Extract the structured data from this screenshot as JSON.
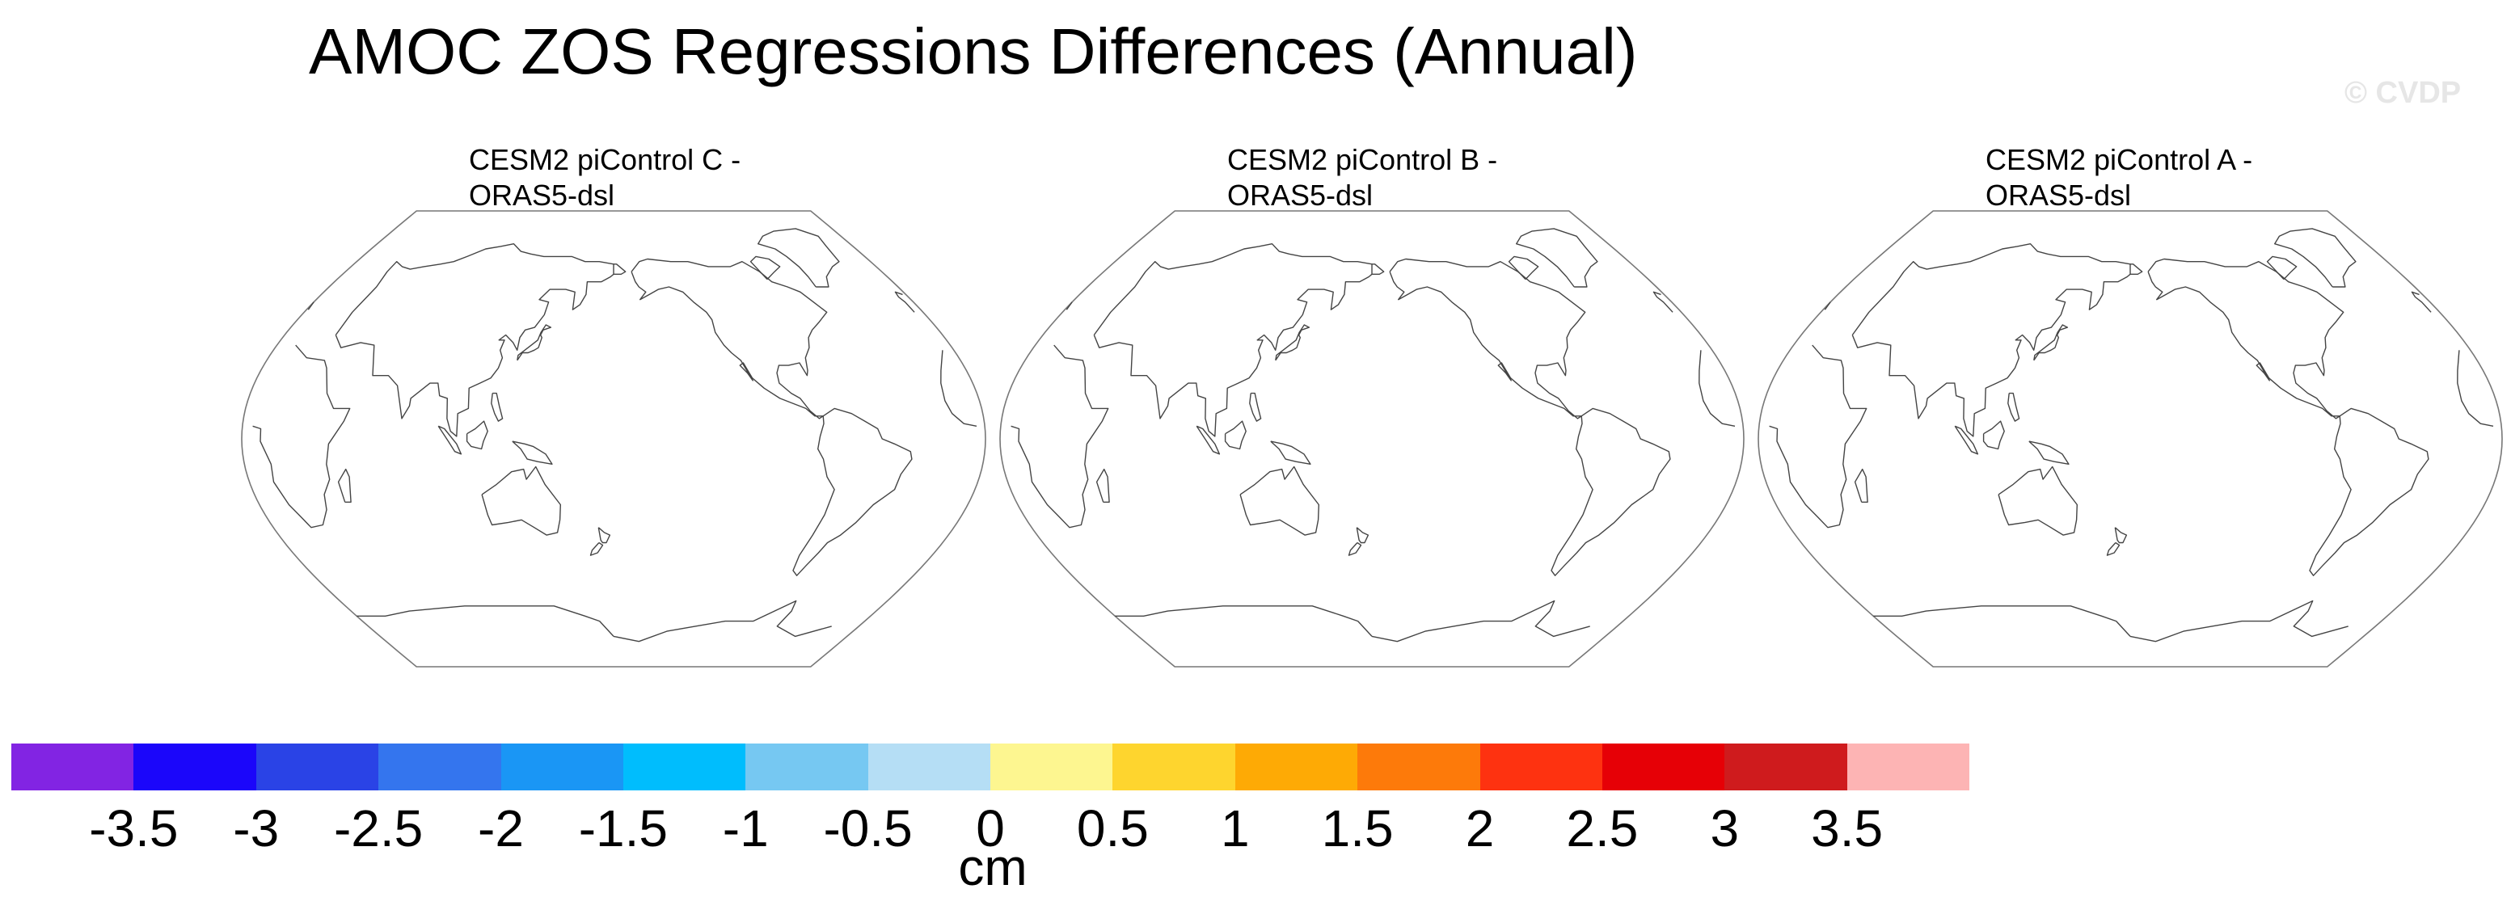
{
  "title": "AMOC ZOS Regressions Differences (Annual)",
  "watermark": "© CVDP",
  "panels": [
    {
      "line1": "CESM2 piControl C -",
      "line2": "ORAS5-dsl"
    },
    {
      "line1": "CESM2 piControl B -",
      "line2": "ORAS5-dsl"
    },
    {
      "line1": "CESM2 piControl A -",
      "line2": "ORAS5-dsl"
    }
  ],
  "map": {
    "projection": "robinson",
    "central_longitude": 180,
    "fill": "none"
  },
  "colorbar": {
    "colors": [
      "#8224e3",
      "#1b06fa",
      "#2a43e6",
      "#3475ee",
      "#1a96f5",
      "#00bdfd",
      "#76c8f2",
      "#b5def5",
      "#fdf690",
      "#fed52e",
      "#feaa05",
      "#fd7a0a",
      "#fe3210",
      "#e60006",
      "#cf1b1d",
      "#fdb4b4"
    ],
    "tick_labels": [
      "-3.5",
      "-3",
      "-2.5",
      "-2",
      "-1.5",
      "-1",
      "-0.5",
      "0",
      "0.5",
      "1",
      "1.5",
      "2",
      "2.5",
      "3",
      "3.5"
    ],
    "units": "cm"
  }
}
